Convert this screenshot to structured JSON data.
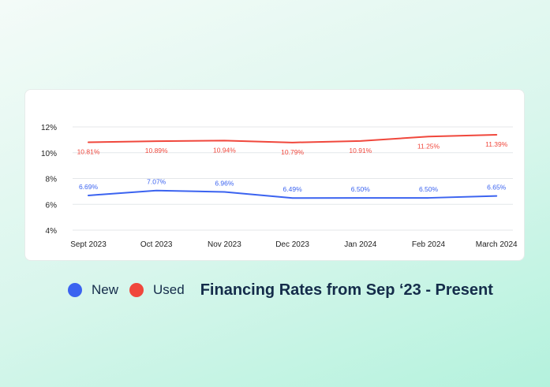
{
  "chart_data": {
    "type": "line",
    "title": "Financing Rates from Sep ‘23 - Present",
    "categories": [
      "Sept 2023",
      "Oct 2023",
      "Nov 2023",
      "Dec 2023",
      "Jan 2024",
      "Feb 2024",
      "March 2024"
    ],
    "yticks": [
      "4%",
      "6%",
      "8%",
      "10%",
      "12%"
    ],
    "ylim": [
      4,
      12
    ],
    "grid": true,
    "legend_position": "bottom-left",
    "series": [
      {
        "name": "New",
        "color": "#3b63f0",
        "values": [
          6.69,
          7.07,
          6.96,
          6.49,
          6.5,
          6.5,
          6.65
        ],
        "labels": [
          "6.69%",
          "7.07%",
          "6.96%",
          "6.49%",
          "6.50%",
          "6.50%",
          "6.65%"
        ]
      },
      {
        "name": "Used",
        "color": "#f0473c",
        "values": [
          10.81,
          10.89,
          10.94,
          10.79,
          10.91,
          11.25,
          11.39
        ],
        "labels": [
          "10.81%",
          "10.89%",
          "10.94%",
          "10.79%",
          "10.91%",
          "11.25%",
          "11.39%"
        ]
      }
    ]
  }
}
